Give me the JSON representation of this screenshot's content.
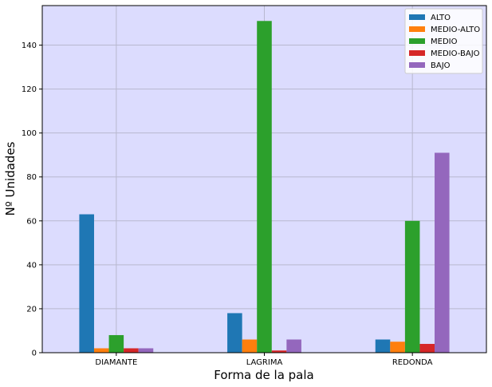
{
  "chart_data": {
    "type": "bar",
    "categories": [
      "DIAMANTE",
      "LAGRIMA",
      "REDONDA"
    ],
    "series": [
      {
        "name": "ALTO",
        "values": [
          63,
          18,
          6
        ],
        "color": "#1f77b4"
      },
      {
        "name": "MEDIO-ALTO",
        "values": [
          2,
          6,
          5
        ],
        "color": "#ff7f0e"
      },
      {
        "name": "MEDIO",
        "values": [
          8,
          151,
          60
        ],
        "color": "#2ca02c"
      },
      {
        "name": "MEDIO-BAJO",
        "values": [
          2,
          1,
          4
        ],
        "color": "#d62728"
      },
      {
        "name": "BAJO",
        "values": [
          2,
          6,
          91
        ],
        "color": "#9467bd"
      }
    ],
    "xlabel": "Forma de la pala",
    "ylabel": "Nº Unidades",
    "ylim": [
      0,
      158
    ],
    "yticks": [
      0,
      20,
      40,
      60,
      80,
      100,
      120,
      140
    ],
    "grid": true,
    "legend_position": "top-right",
    "background_color": "#dcdcfe"
  }
}
